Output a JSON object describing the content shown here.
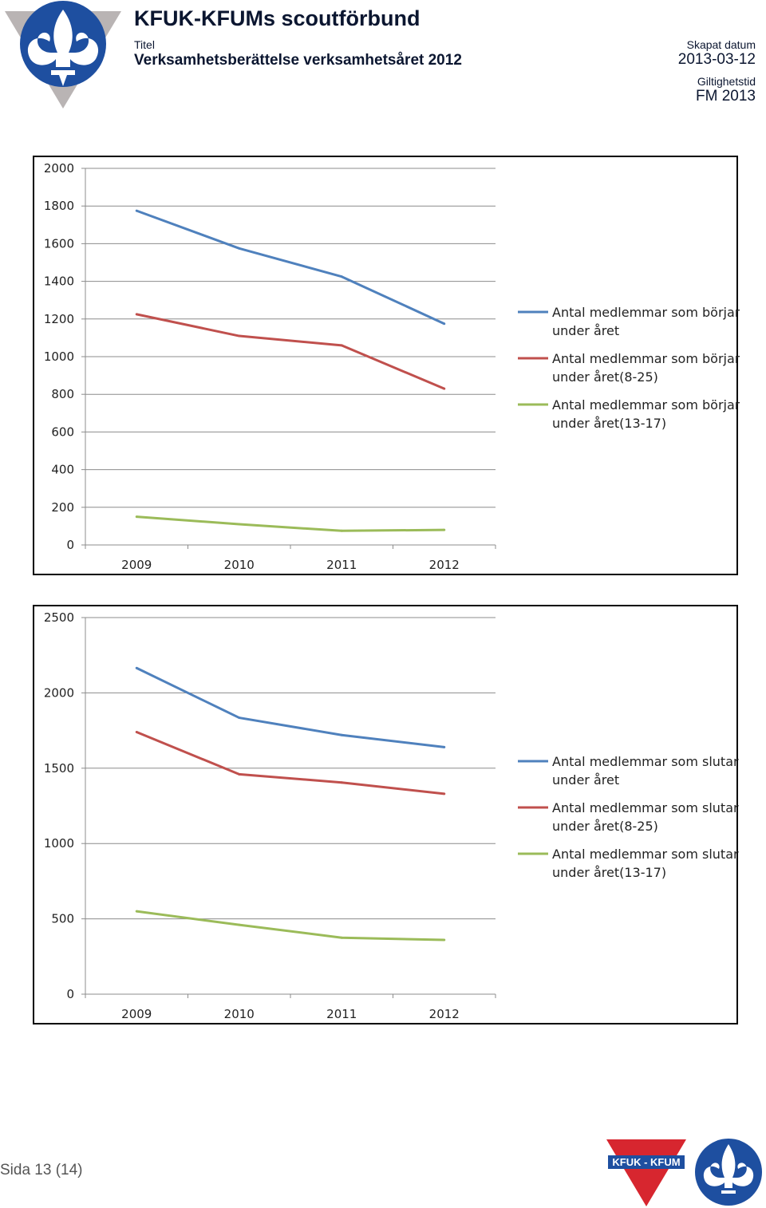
{
  "header": {
    "org_name": "KFUK-KFUMs scoutförbund",
    "title_label": "Titel",
    "title_value": "Verksamhetsberättelse verksamhetsåret 2012",
    "created_label": "Skapat datum",
    "created_value": "2013-03-12",
    "validity_label": "Giltighetstid",
    "validity_value": "FM 2013"
  },
  "footer": {
    "page_text": "Sida 13 (14)",
    "logo_text": "KFUK - KFUM"
  },
  "colors": {
    "blue": "#4f81bd",
    "red": "#c0504d",
    "green": "#9bbb59",
    "logo_blue": "#1e4fa0",
    "logo_red": "#d7262f"
  },
  "chart_data": [
    {
      "type": "line",
      "categories": [
        "2009",
        "2010",
        "2011",
        "2012"
      ],
      "ylim": [
        0,
        2000
      ],
      "yticks": [
        "0",
        "200",
        "400",
        "600",
        "800",
        "1000",
        "1200",
        "1400",
        "1600",
        "1800",
        "2000"
      ],
      "grid": true,
      "legend_position": "right",
      "series": [
        {
          "name": "Antal medlemmar som börjar under året",
          "name_lines": [
            "Antal medlemmar som börjar",
            "under året"
          ],
          "values": [
            1775,
            1575,
            1425,
            1175
          ]
        },
        {
          "name": "Antal medlemmar som börjar under året(8-25)",
          "name_lines": [
            "Antal medlemmar som börjar",
            "under året(8-25)"
          ],
          "values": [
            1225,
            1110,
            1060,
            830
          ]
        },
        {
          "name": "Antal medlemmar som börjar under året(13-17)",
          "name_lines": [
            "Antal medlemmar som börjar",
            "under året(13-17)"
          ],
          "values": [
            150,
            110,
            75,
            80
          ]
        }
      ]
    },
    {
      "type": "line",
      "categories": [
        "2009",
        "2010",
        "2011",
        "2012"
      ],
      "ylim": [
        0,
        2500
      ],
      "yticks": [
        "0",
        "500",
        "1000",
        "1500",
        "2000",
        "2500"
      ],
      "grid": true,
      "legend_position": "right",
      "series": [
        {
          "name": "Antal medlemmar som slutar under året",
          "name_lines": [
            "Antal medlemmar som slutar",
            "under året"
          ],
          "values": [
            2165,
            1835,
            1720,
            1640
          ]
        },
        {
          "name": "Antal medlemmar som slutar under året(8-25)",
          "name_lines": [
            "Antal medlemmar som slutar",
            "under året(8-25)"
          ],
          "values": [
            1740,
            1460,
            1405,
            1330
          ]
        },
        {
          "name": "Antal medlemmar som slutar under året(13-17)",
          "name_lines": [
            "Antal medlemmar som slutar",
            "under året(13-17)"
          ],
          "values": [
            550,
            460,
            375,
            360
          ]
        }
      ]
    }
  ]
}
